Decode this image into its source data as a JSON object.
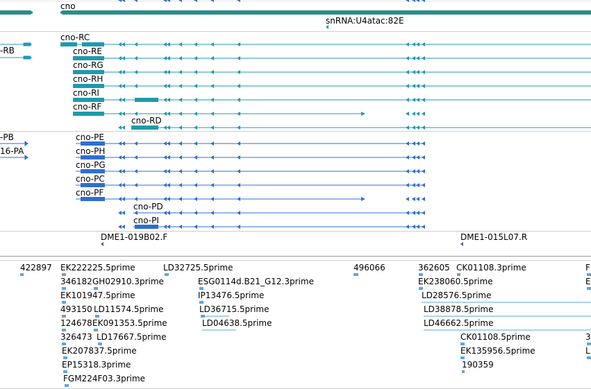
{
  "colors": {
    "teal": "#1f9aad",
    "gene_bar": "#2a8c8c",
    "blue": "#2f6fcf",
    "light_blue": "#5aa7e0",
    "purple": "#6a4fa0",
    "divider": "#cfcfcf"
  },
  "gene_track": {
    "gene_label": "cno",
    "snrna_label": "snRNA:U4atac:82E"
  },
  "teal_transcripts": [
    {
      "label": "-RB"
    },
    {
      "label": "cno-RC"
    },
    {
      "label": "cno-RE"
    },
    {
      "label": "cno-RG"
    },
    {
      "label": "cno-RH"
    },
    {
      "label": "cno-RI"
    },
    {
      "label": "cno-RF"
    },
    {
      "label": "cno-RD"
    }
  ],
  "blue_transcripts": [
    {
      "label": "-PB"
    },
    {
      "label": "16-PA"
    },
    {
      "label": "cno-PE"
    },
    {
      "label": "cno-PH"
    },
    {
      "label": "cno-PG"
    },
    {
      "label": "cno-PC"
    },
    {
      "label": "cno-PF"
    },
    {
      "label": "cno-PD"
    },
    {
      "label": "cno-PI"
    }
  ],
  "clone_track": {
    "left_label": "DME1-019B02.F",
    "right_label": "DME1-015L07.R"
  },
  "est_labels": [
    "422897",
    "EK222225.5prime",
    "LD32725.5prime",
    "496066",
    "362605",
    "CK01108.3prime",
    "F",
    "346182",
    "GH02910.3prime",
    "ESG0114d.B21_G12.3prime",
    "EK238060.5prime",
    "E",
    "EK101947.5prime",
    "IP13476.5prime",
    "LD28576.5prime",
    "493150",
    "LD11574.5prime",
    "LD36715.5prime",
    "LD38878.5prime",
    "124678",
    "EK091353.5prime",
    "LD04638.5prime",
    "LD46662.5prime",
    "326473",
    "LD17667.5prime",
    "CK01108.5prime",
    "3",
    "EK207837.5prime",
    "EK135956.5prime",
    "L",
    "EP15318.3prime",
    "190359",
    "FGM224F03.3prime"
  ]
}
